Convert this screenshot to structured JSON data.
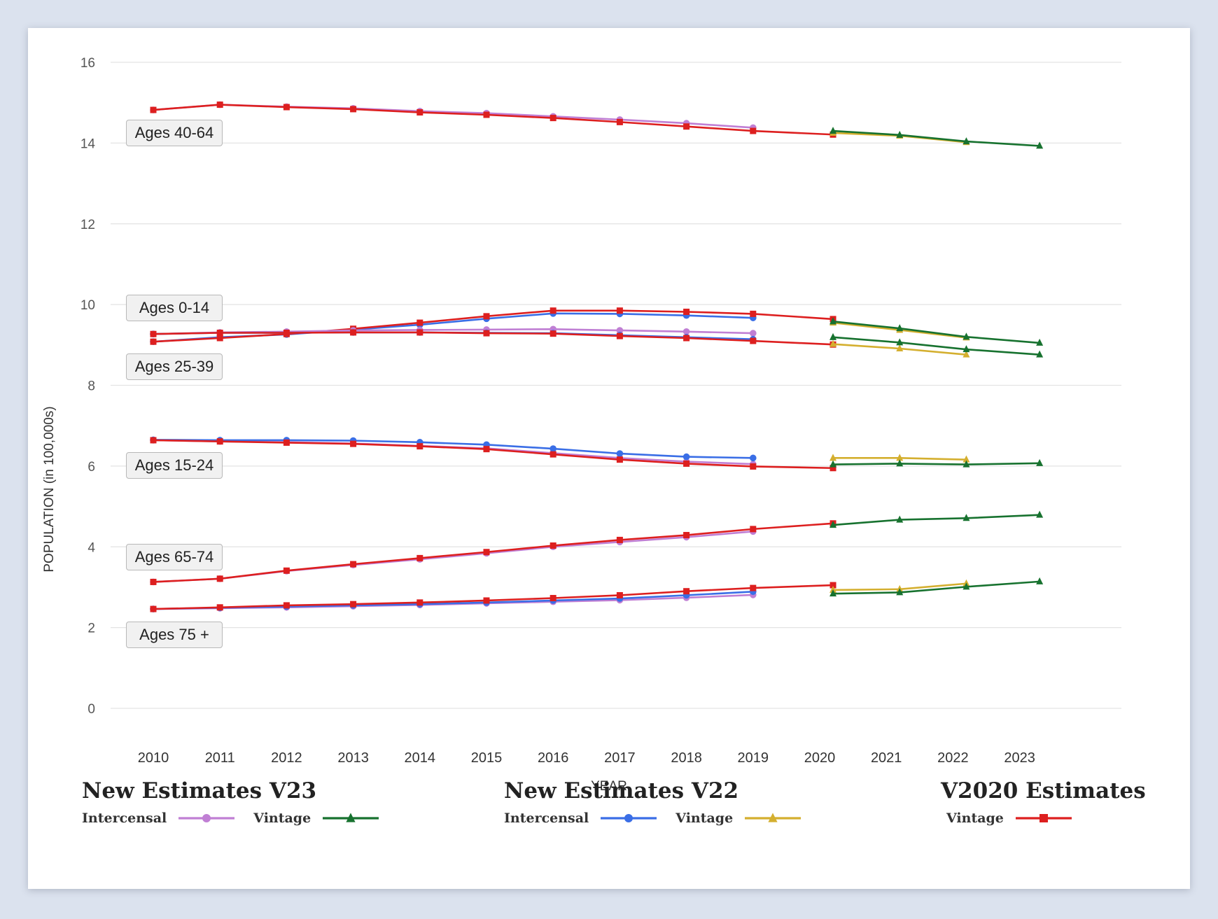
{
  "chart_data": {
    "type": "line",
    "ylabel": "POPULATION (in 100,000s)",
    "xlabel": "YEAR",
    "ylim": [
      0,
      16
    ],
    "yticks": [
      0,
      2,
      4,
      6,
      8,
      10,
      12,
      14,
      16
    ],
    "xticks": [
      "2010",
      "2011",
      "2012",
      "2013",
      "2014",
      "2015",
      "2016",
      "2017",
      "2018",
      "2019",
      "2020",
      "2021",
      "2022",
      "2023"
    ],
    "grid": true,
    "age_groups": [
      "Ages 40-64",
      "Ages 0-14",
      "Ages 25-39",
      "Ages 15-24",
      "Ages 65-74",
      "Ages 75 +"
    ],
    "series": [
      {
        "name": "V23 Intercensal",
        "group": "Ages 40-64",
        "color": "#c07fd4",
        "marker": "circle",
        "x": [
          2010,
          2011,
          2012,
          2013,
          2014,
          2015,
          2016,
          2017,
          2018,
          2019
        ],
        "values": [
          14.82,
          14.95,
          14.9,
          14.86,
          14.79,
          14.74,
          14.66,
          14.58,
          14.49,
          14.38
        ]
      },
      {
        "name": "V2020 Vintage",
        "group": "Ages 40-64",
        "color": "#dd1f1f",
        "marker": "square",
        "x": [
          2010,
          2011,
          2012,
          2013,
          2014,
          2015,
          2016,
          2017,
          2018,
          2019,
          2020.2
        ],
        "values": [
          14.82,
          14.95,
          14.89,
          14.84,
          14.76,
          14.7,
          14.62,
          14.52,
          14.41,
          14.3,
          14.21
        ]
      },
      {
        "name": "V22 Vintage",
        "group": "Ages 40-64",
        "color": "#d4af2f",
        "marker": "triangle",
        "x": [
          2020.2,
          2021.2,
          2022.2
        ],
        "values": [
          14.25,
          14.18,
          14.02
        ]
      },
      {
        "name": "V23 Vintage",
        "group": "Ages 40-64",
        "color": "#17722f",
        "marker": "triangle",
        "x": [
          2020.2,
          2021.2,
          2022.2,
          2023.3
        ],
        "values": [
          14.3,
          14.2,
          14.04,
          13.93
        ]
      },
      {
        "name": "V22 Intercensal",
        "group": "Ages 0-14",
        "color": "#3a6ee6",
        "marker": "circle",
        "x": [
          2010,
          2011,
          2012,
          2013,
          2014,
          2015,
          2016,
          2017,
          2018,
          2019
        ],
        "values": [
          9.08,
          9.19,
          9.26,
          9.38,
          9.5,
          9.65,
          9.78,
          9.77,
          9.73,
          9.67
        ]
      },
      {
        "name": "V2020 Vintage",
        "group": "Ages 0-14",
        "color": "#dd1f1f",
        "marker": "square",
        "x": [
          2010,
          2011,
          2012,
          2013,
          2014,
          2015,
          2016,
          2017,
          2018,
          2019,
          2020.2
        ],
        "values": [
          9.08,
          9.17,
          9.27,
          9.4,
          9.55,
          9.71,
          9.85,
          9.85,
          9.82,
          9.77,
          9.64
        ]
      },
      {
        "name": "V22 Vintage",
        "group": "Ages 0-14",
        "color": "#d4af2f",
        "marker": "triangle",
        "x": [
          2020.2,
          2021.2,
          2022.2
        ],
        "values": [
          9.55,
          9.37,
          9.18
        ]
      },
      {
        "name": "V23 Vintage",
        "group": "Ages 0-14",
        "color": "#17722f",
        "marker": "triangle",
        "x": [
          2020.2,
          2021.2,
          2022.2,
          2023.3
        ],
        "values": [
          9.58,
          9.41,
          9.2,
          9.05
        ]
      },
      {
        "name": "V23 Intercensal",
        "group": "Ages 25-39",
        "color": "#c07fd4",
        "marker": "circle",
        "x": [
          2010,
          2011,
          2012,
          2013,
          2014,
          2015,
          2016,
          2017,
          2018,
          2019
        ],
        "values": [
          9.27,
          9.31,
          9.33,
          9.36,
          9.37,
          9.38,
          9.39,
          9.36,
          9.33,
          9.29
        ]
      },
      {
        "name": "V22 Intercensal",
        "group": "Ages 25-39",
        "color": "#3a6ee6",
        "marker": "circle",
        "x": [
          2010,
          2011,
          2012,
          2013,
          2014,
          2015,
          2016,
          2017,
          2018,
          2019
        ],
        "values": [
          9.27,
          9.3,
          9.3,
          9.31,
          9.31,
          9.3,
          9.29,
          9.24,
          9.19,
          9.14
        ]
      },
      {
        "name": "V2020 Vintage",
        "group": "Ages 25-39",
        "color": "#dd1f1f",
        "marker": "square",
        "x": [
          2010,
          2011,
          2012,
          2013,
          2014,
          2015,
          2016,
          2017,
          2018,
          2019,
          2020.2
        ],
        "values": [
          9.27,
          9.3,
          9.3,
          9.31,
          9.31,
          9.29,
          9.28,
          9.22,
          9.17,
          9.1,
          9.01
        ]
      },
      {
        "name": "V22 Vintage",
        "group": "Ages 25-39",
        "color": "#d4af2f",
        "marker": "triangle",
        "x": [
          2020.2,
          2021.2,
          2022.2
        ],
        "values": [
          9.02,
          8.91,
          8.76
        ]
      },
      {
        "name": "V23 Vintage",
        "group": "Ages 25-39",
        "color": "#17722f",
        "marker": "triangle",
        "x": [
          2020.2,
          2021.2,
          2022.2,
          2023.3
        ],
        "values": [
          9.19,
          9.06,
          8.89,
          8.76
        ]
      },
      {
        "name": "V23 Intercensal",
        "group": "Ages 15-24",
        "color": "#c07fd4",
        "marker": "circle",
        "x": [
          2010,
          2011,
          2012,
          2013,
          2014,
          2015,
          2016,
          2017,
          2018,
          2019
        ],
        "values": [
          6.64,
          6.61,
          6.59,
          6.56,
          6.5,
          6.44,
          6.32,
          6.2,
          6.11,
          6.05
        ]
      },
      {
        "name": "V22 Intercensal",
        "group": "Ages 15-24",
        "color": "#3a6ee6",
        "marker": "circle",
        "x": [
          2010,
          2011,
          2012,
          2013,
          2014,
          2015,
          2016,
          2017,
          2018,
          2019
        ],
        "values": [
          6.65,
          6.64,
          6.64,
          6.63,
          6.59,
          6.53,
          6.43,
          6.31,
          6.23,
          6.2
        ]
      },
      {
        "name": "V2020 Vintage",
        "group": "Ages 15-24",
        "color": "#dd1f1f",
        "marker": "square",
        "x": [
          2010,
          2011,
          2012,
          2013,
          2014,
          2015,
          2016,
          2017,
          2018,
          2019,
          2020.2
        ],
        "values": [
          6.64,
          6.61,
          6.58,
          6.55,
          6.49,
          6.42,
          6.29,
          6.16,
          6.06,
          5.99,
          5.95
        ]
      },
      {
        "name": "V22 Vintage",
        "group": "Ages 15-24",
        "color": "#d4af2f",
        "marker": "triangle",
        "x": [
          2020.2,
          2021.2,
          2022.2
        ],
        "values": [
          6.2,
          6.2,
          6.16
        ]
      },
      {
        "name": "V23 Vintage",
        "group": "Ages 15-24",
        "color": "#17722f",
        "marker": "triangle",
        "x": [
          2020.2,
          2021.2,
          2022.2,
          2023.3
        ],
        "values": [
          6.04,
          6.06,
          6.04,
          6.07
        ]
      },
      {
        "name": "V23 Intercensal",
        "group": "Ages 65-74",
        "color": "#c07fd4",
        "marker": "circle",
        "x": [
          2010,
          2011,
          2012,
          2013,
          2014,
          2015,
          2016,
          2017,
          2018,
          2019
        ],
        "values": [
          3.13,
          3.21,
          3.4,
          3.55,
          3.69,
          3.84,
          4.0,
          4.12,
          4.24,
          4.38
        ]
      },
      {
        "name": "V2020 Vintage",
        "group": "Ages 65-74",
        "color": "#dd1f1f",
        "marker": "square",
        "x": [
          2010,
          2011,
          2012,
          2013,
          2014,
          2015,
          2016,
          2017,
          2018,
          2019,
          2020.2
        ],
        "values": [
          3.13,
          3.21,
          3.41,
          3.57,
          3.72,
          3.87,
          4.03,
          4.17,
          4.29,
          4.44,
          4.58
        ]
      },
      {
        "name": "V23 Vintage",
        "group": "Ages 65-74",
        "color": "#17722f",
        "marker": "triangle",
        "x": [
          2020.2,
          2021.2,
          2022.2,
          2023.3
        ],
        "values": [
          4.54,
          4.67,
          4.71,
          4.79
        ]
      },
      {
        "name": "V23 Intercensal",
        "group": "Ages 75 +",
        "color": "#c07fd4",
        "marker": "circle",
        "x": [
          2010,
          2011,
          2012,
          2013,
          2014,
          2015,
          2016,
          2017,
          2018,
          2019
        ],
        "values": [
          2.46,
          2.48,
          2.5,
          2.53,
          2.56,
          2.6,
          2.64,
          2.68,
          2.74,
          2.81
        ]
      },
      {
        "name": "V22 Intercensal",
        "group": "Ages 75 +",
        "color": "#3a6ee6",
        "marker": "circle",
        "x": [
          2010,
          2011,
          2012,
          2013,
          2014,
          2015,
          2016,
          2017,
          2018,
          2019
        ],
        "values": [
          2.46,
          2.49,
          2.52,
          2.55,
          2.58,
          2.62,
          2.67,
          2.72,
          2.8,
          2.89
        ]
      },
      {
        "name": "V2020 Vintage",
        "group": "Ages 75 +",
        "color": "#dd1f1f",
        "marker": "square",
        "x": [
          2010,
          2011,
          2012,
          2013,
          2014,
          2015,
          2016,
          2017,
          2018,
          2019,
          2020.2
        ],
        "values": [
          2.46,
          2.5,
          2.55,
          2.58,
          2.62,
          2.67,
          2.73,
          2.8,
          2.9,
          2.98,
          3.05
        ]
      },
      {
        "name": "V22 Vintage",
        "group": "Ages 75 +",
        "color": "#d4af2f",
        "marker": "triangle",
        "x": [
          2020.2,
          2021.2,
          2022.2
        ],
        "values": [
          2.93,
          2.95,
          3.09
        ]
      },
      {
        "name": "V23 Vintage",
        "group": "Ages 75 +",
        "color": "#17722f",
        "marker": "triangle",
        "x": [
          2020.2,
          2021.2,
          2022.2,
          2023.3
        ],
        "values": [
          2.84,
          2.87,
          3.01,
          3.14
        ]
      }
    ]
  },
  "legend": {
    "groups": [
      {
        "title": "New Estimates V23",
        "items": [
          {
            "label": "Intercensal",
            "color": "#c07fd4",
            "marker": "circle"
          },
          {
            "label": "Vintage",
            "color": "#17722f",
            "marker": "triangle"
          }
        ]
      },
      {
        "title": "New Estimates V22",
        "items": [
          {
            "label": "Intercensal",
            "color": "#3a6ee6",
            "marker": "circle"
          },
          {
            "label": "Vintage",
            "color": "#d4af2f",
            "marker": "triangle"
          }
        ]
      },
      {
        "title": "V2020 Estimates",
        "items": [
          {
            "label": "Vintage",
            "color": "#dd1f1f",
            "marker": "square"
          }
        ]
      }
    ]
  }
}
